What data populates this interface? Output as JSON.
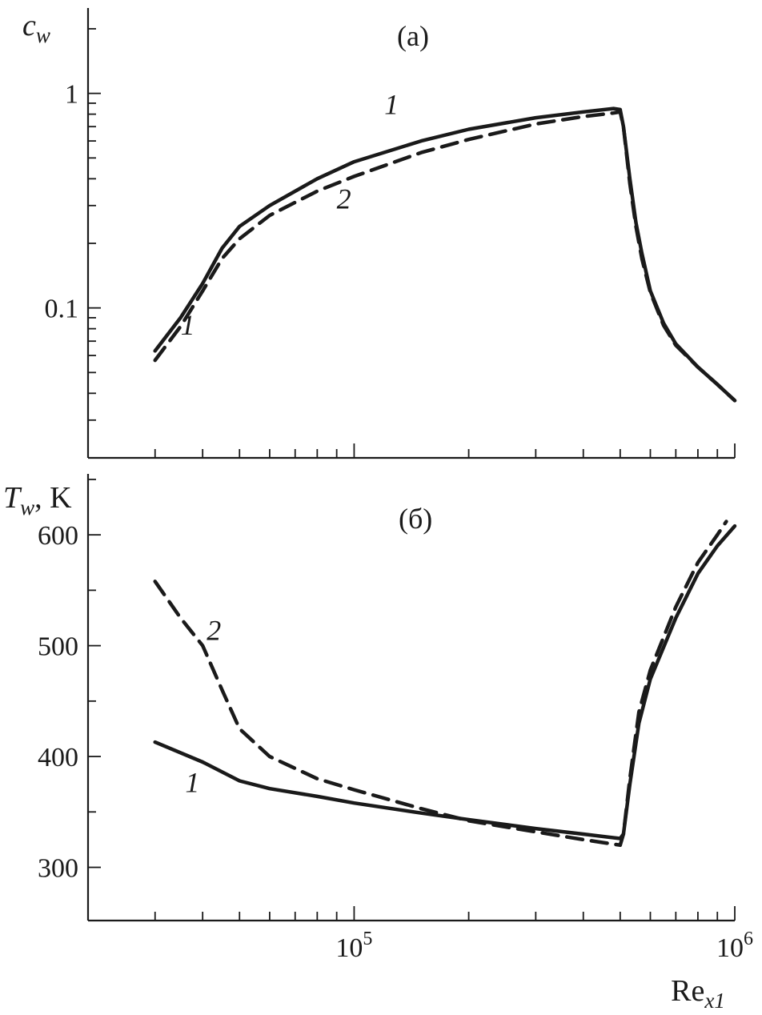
{
  "chart_data": [
    {
      "type": "line",
      "panel_label": "(a)",
      "ylabel_main": "c",
      "ylabel_sub": "w",
      "xscale": "log",
      "yscale": "log",
      "xlim": [
        20000,
        1000000
      ],
      "ylim": [
        0.02,
        2.5
      ],
      "yticks": [
        {
          "value": 0.1,
          "label": "0.1"
        },
        {
          "value": 1,
          "label": "1"
        }
      ],
      "curve_labels": [
        {
          "text": "1",
          "x": 120000,
          "y": 0.8
        },
        {
          "text": "2",
          "x": 90000,
          "y": 0.29
        },
        {
          "text": "1",
          "x": 35000,
          "y": 0.075
        }
      ],
      "series": [
        {
          "line_style": "solid",
          "points": [
            [
              30000,
              0.063
            ],
            [
              35000,
              0.09
            ],
            [
              40000,
              0.13
            ],
            [
              45000,
              0.19
            ],
            [
              50000,
              0.24
            ],
            [
              60000,
              0.3
            ],
            [
              80000,
              0.4
            ],
            [
              100000,
              0.48
            ],
            [
              150000,
              0.6
            ],
            [
              200000,
              0.68
            ],
            [
              300000,
              0.77
            ],
            [
              400000,
              0.82
            ],
            [
              480000,
              0.85
            ],
            [
              500000,
              0.84
            ],
            [
              510000,
              0.7
            ],
            [
              530000,
              0.4
            ],
            [
              550000,
              0.25
            ],
            [
              570000,
              0.18
            ],
            [
              600000,
              0.12
            ],
            [
              650000,
              0.085
            ],
            [
              700000,
              0.068
            ],
            [
              800000,
              0.053
            ],
            [
              900000,
              0.044
            ],
            [
              1000000,
              0.037
            ]
          ]
        },
        {
          "line_style": "dashed",
          "points": [
            [
              30000,
              0.057
            ],
            [
              35000,
              0.082
            ],
            [
              40000,
              0.12
            ],
            [
              45000,
              0.17
            ],
            [
              50000,
              0.21
            ],
            [
              60000,
              0.27
            ],
            [
              80000,
              0.35
            ],
            [
              100000,
              0.41
            ],
            [
              150000,
              0.53
            ],
            [
              200000,
              0.61
            ],
            [
              300000,
              0.72
            ],
            [
              400000,
              0.78
            ],
            [
              480000,
              0.81
            ],
            [
              500000,
              0.82
            ],
            [
              510000,
              0.7
            ],
            [
              530000,
              0.38
            ],
            [
              550000,
              0.24
            ],
            [
              570000,
              0.17
            ],
            [
              600000,
              0.118
            ],
            [
              650000,
              0.083
            ],
            [
              700000,
              0.067
            ],
            [
              800000,
              0.053
            ],
            [
              900000,
              0.044
            ],
            [
              1000000,
              0.037
            ]
          ]
        }
      ]
    },
    {
      "type": "line",
      "panel_label": "(б)",
      "ylabel_main": "T",
      "ylabel_sub": "w",
      "ylabel_rest": ", K",
      "xscale": "log",
      "yscale": "linear",
      "xlim": [
        20000,
        1000000
      ],
      "ylim": [
        252,
        655
      ],
      "yticks": [
        {
          "value": 300,
          "label": "300"
        },
        {
          "value": 400,
          "label": "400"
        },
        {
          "value": 500,
          "label": "500"
        },
        {
          "value": 600,
          "label": "600"
        }
      ],
      "xticks": [
        {
          "value": 100000,
          "base": "10",
          "exp": "5"
        },
        {
          "value": 1000000,
          "base": "10",
          "exp": "6"
        }
      ],
      "xlabel_main": "Re",
      "xlabel_sub": "x1",
      "curve_labels": [
        {
          "text": "2",
          "x": 41000,
          "y": 505
        },
        {
          "text": "1",
          "x": 36000,
          "y": 368
        }
      ],
      "series": [
        {
          "line_style": "solid",
          "points": [
            [
              30000,
              413
            ],
            [
              40000,
              395
            ],
            [
              50000,
              378
            ],
            [
              60000,
              371
            ],
            [
              80000,
              364
            ],
            [
              100000,
              358
            ],
            [
              150000,
              349
            ],
            [
              200000,
              343
            ],
            [
              300000,
              335
            ],
            [
              400000,
              330
            ],
            [
              500000,
              326
            ],
            [
              510000,
              330
            ],
            [
              530000,
              375
            ],
            [
              560000,
              430
            ],
            [
              600000,
              470
            ],
            [
              700000,
              525
            ],
            [
              800000,
              565
            ],
            [
              900000,
              590
            ],
            [
              1000000,
              608
            ]
          ]
        },
        {
          "line_style": "dashed",
          "points": [
            [
              30000,
              558
            ],
            [
              35000,
              525
            ],
            [
              40000,
              500
            ],
            [
              45000,
              460
            ],
            [
              50000,
              425
            ],
            [
              60000,
              400
            ],
            [
              80000,
              380
            ],
            [
              100000,
              370
            ],
            [
              150000,
              353
            ],
            [
              200000,
              342
            ],
            [
              300000,
              332
            ],
            [
              400000,
              325
            ],
            [
              500000,
              320
            ],
            [
              510000,
              330
            ],
            [
              530000,
              380
            ],
            [
              560000,
              440
            ],
            [
              600000,
              478
            ],
            [
              700000,
              535
            ],
            [
              800000,
              575
            ],
            [
              900000,
              600
            ],
            [
              950000,
              612
            ]
          ]
        }
      ]
    }
  ]
}
